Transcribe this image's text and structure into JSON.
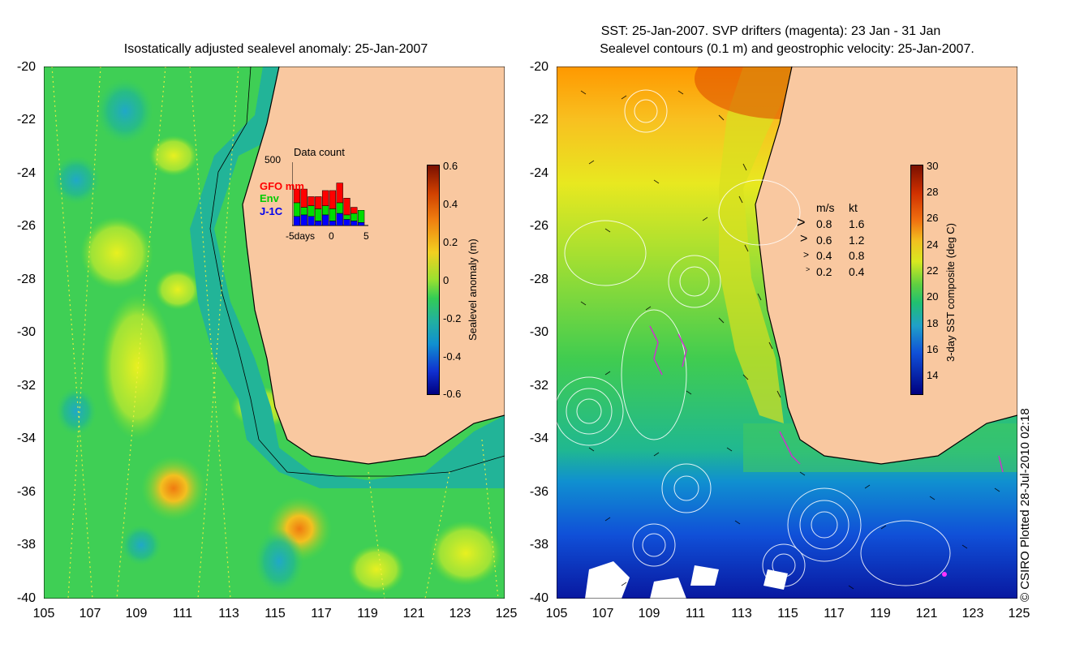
{
  "left_panel": {
    "title": "Isostatically adjusted sealevel anomaly: 25-Jan-2007",
    "y_ticks": [
      "-20",
      "-22",
      "-24",
      "-26",
      "-28",
      "-30",
      "-32",
      "-34",
      "-36",
      "-38",
      "-40"
    ],
    "x_ticks": [
      "105",
      "107",
      "109",
      "111",
      "113",
      "115",
      "117",
      "119",
      "121",
      "123",
      "125"
    ],
    "colorbar": {
      "label": "Sealevel anomaly (m)",
      "ticks": [
        "0.6",
        "0.4",
        "0.2",
        "0",
        "-0.2",
        "-0.4",
        "-0.6"
      ]
    },
    "inset": {
      "title": "Data count",
      "ymax_label": "500",
      "x_labels": [
        "-5days",
        "0",
        "5"
      ],
      "legend": [
        {
          "label": "GFO mm",
          "color": "#ff0000"
        },
        {
          "label": "Env",
          "color": "#00dd00"
        },
        {
          "label": "J-1C",
          "color": "#0000ff"
        }
      ],
      "series": {
        "days": [
          -5,
          -4,
          -3,
          -2,
          -1,
          0,
          1,
          2,
          3,
          4
        ],
        "gfo": [
          90,
          120,
          60,
          80,
          100,
          120,
          130,
          110,
          40,
          0
        ],
        "env": [
          90,
          50,
          70,
          80,
          60,
          80,
          70,
          30,
          50,
          80
        ],
        "j1c": [
          60,
          70,
          60,
          30,
          70,
          30,
          80,
          40,
          30,
          20
        ]
      }
    }
  },
  "right_panel": {
    "title_line1": "SST: 25-Jan-2007. SVP drifters (magenta): 23 Jan - 31 Jan",
    "title_line2": "Sealevel contours (0.1 m) and geostrophic velocity: 25-Jan-2007.",
    "y_ticks": [
      "-20",
      "-22",
      "-24",
      "-26",
      "-28",
      "-30",
      "-32",
      "-34",
      "-36",
      "-38",
      "-40"
    ],
    "x_ticks": [
      "105",
      "107",
      "109",
      "111",
      "113",
      "115",
      "117",
      "119",
      "121",
      "123",
      "125"
    ],
    "colorbar": {
      "label": "3-day SST composite (deg C)",
      "ticks": [
        "30",
        "28",
        "26",
        "24",
        "22",
        "20",
        "18",
        "16",
        "14"
      ]
    },
    "velocity_legend": {
      "header_ms": "m/s",
      "header_kt": "kt",
      "rows": [
        {
          "ms": "0.8",
          "kt": "1.6"
        },
        {
          "ms": "0.6",
          "kt": "1.2"
        },
        {
          "ms": "0.4",
          "kt": "0.8"
        },
        {
          "ms": "0.2",
          "kt": "0.4"
        }
      ]
    }
  },
  "copyright": "© CSIRO Plotted 28-Jul-2010 02:18",
  "colors": {
    "land": "#f9c8a0",
    "ocean_green": "#33cc44",
    "shelf_teal": "#22aa99",
    "sst_warm": "#ff8800",
    "sst_cold": "#0022aa"
  }
}
